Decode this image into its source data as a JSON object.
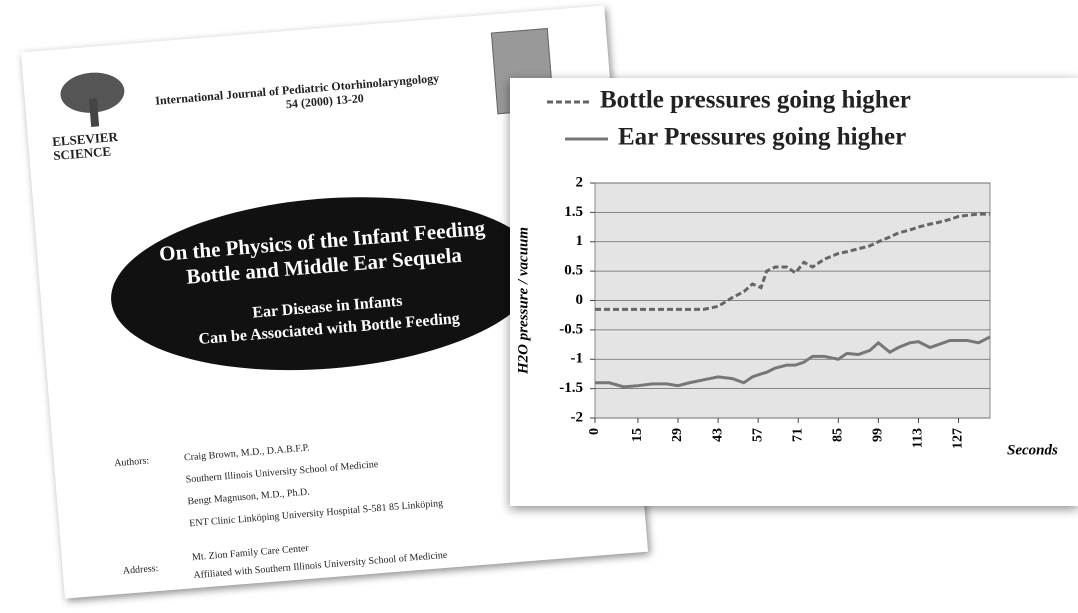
{
  "document": {
    "publisher": [
      "ELSEVIER",
      "SCIENCE"
    ],
    "journal": "International Journal of Pediatric Otorhinolaryngology",
    "volume": "54 (2000) 13-20",
    "title": [
      "On the Physics of the Infant Feeding",
      "Bottle and Middle Ear Sequela"
    ],
    "subtitle": [
      "Ear Disease in Infants",
      "Can be Associated with Bottle Feeding"
    ],
    "authors_label": "Authors:",
    "authors": [
      "Craig Brown, M.D., D.A.B.F.P.",
      "Southern Illinois University School of Medicine",
      "Bengt Magnuson, M.D., Ph.D.",
      "ENT Clinic Linköping University Hospital  S-581 85 Linköping"
    ],
    "address_label": "Address:",
    "address": [
      "Mt. Zion Family Care Center",
      "Affiliated with Southern Illinois University School of Medicine"
    ]
  },
  "chart_data": {
    "type": "line",
    "y_label": "H2O pressure / vacuum",
    "x_label": "Seconds",
    "x": [
      0,
      5,
      10,
      15,
      20,
      25,
      29,
      33,
      38,
      43,
      48,
      52,
      55,
      58,
      60,
      63,
      67,
      70,
      73,
      76,
      80,
      85,
      88,
      92,
      96,
      99,
      103,
      106,
      110,
      113,
      117,
      120,
      124,
      127,
      130,
      134,
      138
    ],
    "series": [
      {
        "name": "Bottle pressures going higher",
        "color": "#666666",
        "dash": true,
        "values": [
          -0.15,
          -0.15,
          -0.15,
          -0.15,
          -0.15,
          -0.15,
          -0.15,
          -0.15,
          -0.15,
          -0.1,
          0.05,
          0.15,
          0.28,
          0.22,
          0.5,
          0.57,
          0.57,
          0.47,
          0.65,
          0.57,
          0.7,
          0.8,
          0.83,
          0.88,
          0.93,
          1.0,
          1.08,
          1.15,
          1.2,
          1.25,
          1.3,
          1.33,
          1.38,
          1.43,
          1.45,
          1.47,
          1.47
        ]
      },
      {
        "name": "Ear Pressures going higher",
        "color": "#777777",
        "dash": false,
        "values": [
          -1.4,
          -1.4,
          -1.47,
          -1.45,
          -1.42,
          -1.42,
          -1.45,
          -1.4,
          -1.35,
          -1.3,
          -1.33,
          -1.4,
          -1.3,
          -1.25,
          -1.22,
          -1.15,
          -1.1,
          -1.1,
          -1.05,
          -0.95,
          -0.95,
          -1.0,
          -0.9,
          -0.92,
          -0.85,
          -0.72,
          -0.88,
          -0.8,
          -0.72,
          -0.7,
          -0.8,
          -0.75,
          -0.68,
          -0.68,
          -0.68,
          -0.72,
          -0.62
        ]
      }
    ],
    "xlim": [
      0,
      138
    ],
    "xticks": [
      0,
      15,
      29,
      43,
      57,
      71,
      85,
      99,
      113,
      127
    ],
    "ylim": [
      -2,
      2
    ],
    "yticks": [
      -2,
      -1.5,
      -1,
      -0.5,
      0,
      0.5,
      1,
      1.5,
      2
    ],
    "grid": true
  }
}
